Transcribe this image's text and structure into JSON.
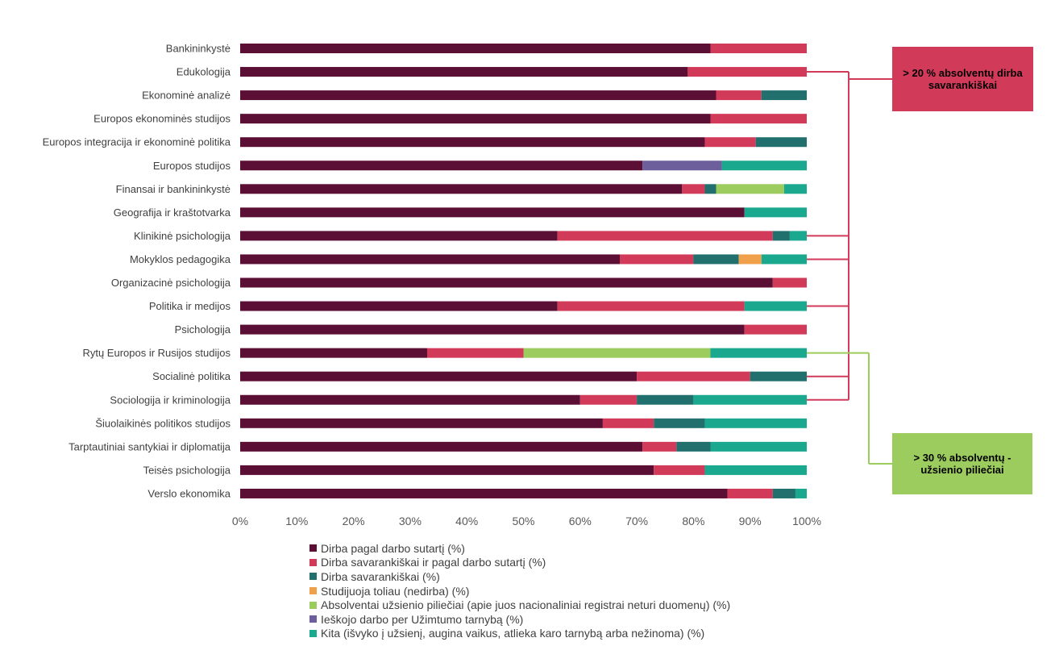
{
  "chart_data": {
    "type": "bar",
    "orientation": "horizontal",
    "stacked": "percent",
    "categories": [
      "Bankininkystė",
      "Edukologija",
      "Ekonominė analizė",
      "Europos ekonominės studijos",
      "Europos integracija ir ekonominė politika",
      "Europos studijos",
      "Finansai ir bankininkystė",
      "Geografija ir kraštotvarka",
      "Klinikinė psichologija",
      "Mokyklos pedagogika",
      "Organizacinė psichologija",
      "Politika ir medijos",
      "Psichologija",
      "Rytų Europos ir Rusijos studijos",
      "Socialinė politika",
      "Sociologija ir kriminologija",
      "Šiuolaikinės politikos studijos",
      "Tarptautiniai santykiai ir diplomatija",
      "Teisės psichologija",
      "Verslo ekonomika"
    ],
    "series": [
      {
        "name": "Dirba pagal darbo sutartį (%)",
        "color": "#5C0F35",
        "values": [
          83,
          79,
          84,
          83,
          82,
          71,
          78,
          89,
          56,
          67,
          94,
          56,
          89,
          33,
          70,
          60,
          64,
          71,
          73,
          86
        ]
      },
      {
        "name": "Dirba savarankiškai ir pagal darbo sutartį (%)",
        "color": "#D23A5A",
        "values": [
          17,
          21,
          8,
          17,
          9,
          0,
          4,
          0,
          38,
          13,
          6,
          33,
          11,
          17,
          20,
          10,
          9,
          6,
          9,
          8
        ]
      },
      {
        "name": "Dirba savarankiškai (%)",
        "color": "#21706E",
        "values": [
          0,
          0,
          8,
          0,
          9,
          0,
          2,
          0,
          3,
          8,
          0,
          0,
          0,
          0,
          10,
          10,
          9,
          6,
          0,
          4
        ]
      },
      {
        "name": "Studijuoja toliau (nedirba) (%)",
        "color": "#F0A04B",
        "values": [
          0,
          0,
          0,
          0,
          0,
          0,
          0,
          0,
          0,
          4,
          0,
          0,
          0,
          0,
          0,
          0,
          0,
          0,
          0,
          0
        ]
      },
      {
        "name": "Absolventai užsienio piliečiai (apie juos nacionaliniai registrai neturi duomenų) (%)",
        "color": "#9CCB5E",
        "values": [
          0,
          0,
          0,
          0,
          0,
          0,
          12,
          0,
          0,
          0,
          0,
          0,
          0,
          33,
          0,
          0,
          0,
          0,
          0,
          0
        ]
      },
      {
        "name": "Ieškojo darbo per Užimtumo tarnybą (%)",
        "color": "#6C5F9B",
        "values": [
          0,
          0,
          0,
          0,
          0,
          14,
          0,
          0,
          0,
          0,
          0,
          0,
          0,
          0,
          0,
          0,
          0,
          0,
          0,
          0
        ]
      },
      {
        "name": "Kita (išvyko į užsienį, augina vaikus, atlieka karo tarnybą arba nežinoma) (%)",
        "color": "#1AA88E",
        "values": [
          0,
          0,
          0,
          0,
          0,
          15,
          4,
          11,
          3,
          8,
          0,
          11,
          0,
          17,
          0,
          20,
          18,
          17,
          18,
          2
        ]
      }
    ],
    "xlim": [
      0,
      100
    ],
    "x_ticks": [
      "0%",
      "10%",
      "20%",
      "30%",
      "40%",
      "50%",
      "60%",
      "70%",
      "80%",
      "90%",
      "100%"
    ],
    "grid": false,
    "legend_position": "bottom",
    "annotations": [
      {
        "text": "> 20 % absolventų dirba savarankiškai",
        "color": "#D23A5A",
        "categories": [
          "Edukologija",
          "Klinikinė psichologija",
          "Mokyklos pedagogika",
          "Politika ir medijos",
          "Socialinė politika",
          "Sociologija ir kriminologija"
        ]
      },
      {
        "text": "> 30 % absolventų - užsienio piliečiai",
        "color": "#9CCB5E",
        "categories": [
          "Rytų Europos ir Rusijos studijos"
        ]
      }
    ]
  }
}
